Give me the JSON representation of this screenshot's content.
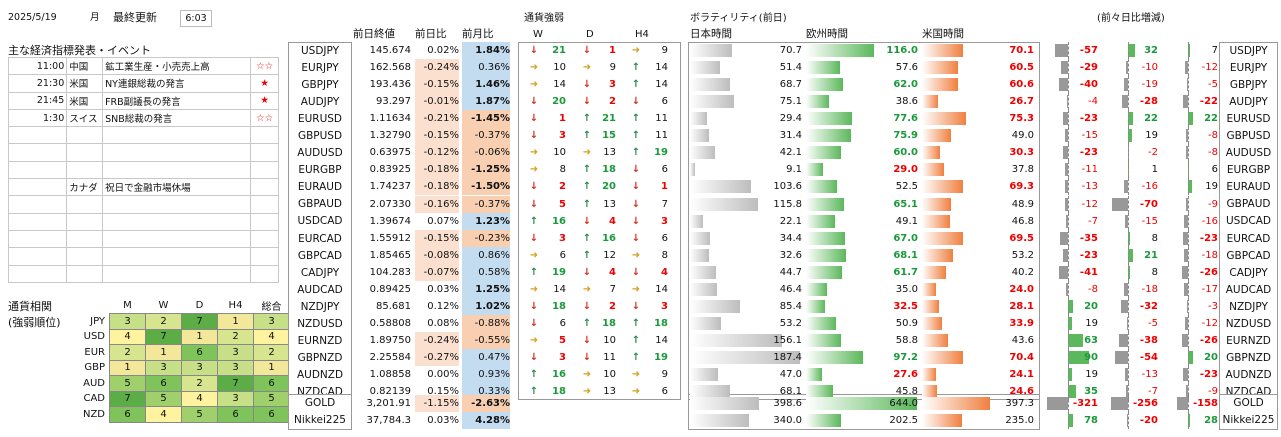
{
  "header": {
    "date": "2025/5/19",
    "weekday": "月",
    "updated_label": "最終更新",
    "time": "6:03"
  },
  "events": {
    "title": "主な経済指標発表・イベント",
    "rows": [
      {
        "time": "11:00",
        "country": "中国",
        "name": "鉱工業生産・小売売上高",
        "stars": "☆☆"
      },
      {
        "time": "21:30",
        "country": "米国",
        "name": "NY連銀総裁の発言",
        "stars": "★"
      },
      {
        "time": "21:45",
        "country": "米国",
        "name": "FRB副議長の発言",
        "stars": "★"
      },
      {
        "time": "1:30",
        "country": "スイス",
        "name": "SNB総裁の発言",
        "stars": "☆☆"
      },
      {
        "time": "",
        "country": "",
        "name": "",
        "stars": ""
      },
      {
        "time": "",
        "country": "",
        "name": "",
        "stars": ""
      },
      {
        "time": "",
        "country": "",
        "name": "",
        "stars": ""
      },
      {
        "time": "",
        "country": "カナダ",
        "name": "祝日で金融市場休場",
        "stars": ""
      },
      {
        "time": "",
        "country": "",
        "name": "",
        "stars": ""
      },
      {
        "time": "",
        "country": "",
        "name": "",
        "stars": ""
      },
      {
        "time": "",
        "country": "",
        "name": "",
        "stars": ""
      },
      {
        "time": "",
        "country": "",
        "name": "",
        "stars": ""
      },
      {
        "time": "",
        "country": "",
        "name": "",
        "stars": ""
      }
    ]
  },
  "correlation": {
    "title1": "通貨相関",
    "title2": "(強弱順位)",
    "cols": [
      "M",
      "W",
      "D",
      "H4",
      "総合"
    ],
    "rows": [
      {
        "ccy": "JPY",
        "v": [
          3,
          2,
          7,
          1,
          3
        ]
      },
      {
        "ccy": "USD",
        "v": [
          4,
          7,
          1,
          2,
          4
        ]
      },
      {
        "ccy": "EUR",
        "v": [
          2,
          1,
          6,
          3,
          2
        ]
      },
      {
        "ccy": "GBP",
        "v": [
          1,
          3,
          3,
          3,
          1
        ]
      },
      {
        "ccy": "AUD",
        "v": [
          5,
          6,
          2,
          7,
          6
        ]
      },
      {
        "ccy": "CAD",
        "v": [
          7,
          5,
          4,
          3,
          5
        ]
      },
      {
        "ccy": "NZD",
        "v": [
          6,
          4,
          5,
          6,
          6
        ]
      }
    ]
  },
  "quotes": {
    "headers": {
      "prev_close": "前日終値",
      "day_chg": "前日比",
      "month_chg": "前月比",
      "strength": "通貨強弱",
      "w": "W",
      "d": "D",
      "h4": "H4",
      "volatility": "ボラティリティ(前日)",
      "tokyo": "日本時間",
      "europe": "欧州時間",
      "ny": "米国時間",
      "diff": "(前々日比増減)"
    },
    "rows": [
      {
        "pair": "USDJPY",
        "close": "145.674",
        "day": "0.02%",
        "mon": "1.84%",
        "w": "↓",
        "wn": 21,
        "d": "↓",
        "dn": 1,
        "h4": "➜",
        "hn": 9,
        "jp": "70.7",
        "eu": "116.0",
        "us": "70.1",
        "djp": "-57",
        "deu": "32",
        "dus": "7"
      },
      {
        "pair": "EURJPY",
        "close": "162.568",
        "day": "-0.24%",
        "mon": "0.36%",
        "w": "➜",
        "wn": 10,
        "d": "➜",
        "dn": 9,
        "h4": "↑",
        "hn": 14,
        "jp": "51.4",
        "eu": "57.6",
        "us": "60.5",
        "djp": "-29",
        "deu": "-10",
        "dus": "-12"
      },
      {
        "pair": "GBPJPY",
        "close": "193.436",
        "day": "-0.15%",
        "mon": "1.46%",
        "w": "➜",
        "wn": 14,
        "d": "↓",
        "dn": 3,
        "h4": "↑",
        "hn": 14,
        "jp": "68.7",
        "eu": "62.0",
        "us": "60.6",
        "djp": "-40",
        "deu": "-19",
        "dus": "-5"
      },
      {
        "pair": "AUDJPY",
        "close": "93.297",
        "day": "-0.01%",
        "mon": "1.87%",
        "w": "↓",
        "wn": 20,
        "d": "↓",
        "dn": 2,
        "h4": "↓",
        "hn": 6,
        "jp": "75.1",
        "eu": "38.6",
        "us": "26.7",
        "djp": "-4",
        "deu": "-28",
        "dus": "-22"
      },
      {
        "pair": "EURUSD",
        "close": "1.11634",
        "day": "-0.21%",
        "mon": "-1.45%",
        "w": "↓",
        "wn": 1,
        "d": "↑",
        "dn": 21,
        "h4": "↑",
        "hn": 11,
        "jp": "29.4",
        "eu": "77.6",
        "us": "75.3",
        "djp": "-23",
        "deu": "22",
        "dus": "22"
      },
      {
        "pair": "GBPUSD",
        "close": "1.32790",
        "day": "-0.15%",
        "mon": "-0.37%",
        "w": "↓",
        "wn": 3,
        "d": "↑",
        "dn": 15,
        "h4": "↑",
        "hn": 11,
        "jp": "31.4",
        "eu": "75.9",
        "us": "49.0",
        "djp": "-15",
        "deu": "19",
        "dus": "-8"
      },
      {
        "pair": "AUDUSD",
        "close": "0.63975",
        "day": "-0.12%",
        "mon": "-0.06%",
        "w": "➜",
        "wn": 10,
        "d": "➜",
        "dn": 13,
        "h4": "↑",
        "hn": 19,
        "jp": "42.1",
        "eu": "60.0",
        "us": "30.3",
        "djp": "-23",
        "deu": "-2",
        "dus": "-8"
      },
      {
        "pair": "EURGBP",
        "close": "0.83925",
        "day": "-0.18%",
        "mon": "-1.25%",
        "w": "➜",
        "wn": 8,
        "d": "↑",
        "dn": 18,
        "h4": "↓",
        "hn": 6,
        "jp": "9.1",
        "eu": "29.0",
        "us": "37.8",
        "djp": "-11",
        "deu": "1",
        "dus": "6"
      },
      {
        "pair": "EURAUD",
        "close": "1.74237",
        "day": "-0.18%",
        "mon": "-1.50%",
        "w": "↓",
        "wn": 2,
        "d": "↑",
        "dn": 20,
        "h4": "↓",
        "hn": 1,
        "jp": "103.6",
        "eu": "52.5",
        "us": "69.3",
        "djp": "-13",
        "deu": "-16",
        "dus": "19"
      },
      {
        "pair": "GBPAUD",
        "close": "2.07330",
        "day": "-0.16%",
        "mon": "-0.37%",
        "w": "↓",
        "wn": 5,
        "d": "↑",
        "dn": 13,
        "h4": "↓",
        "hn": 7,
        "jp": "115.8",
        "eu": "65.1",
        "us": "48.9",
        "djp": "-12",
        "deu": "-70",
        "dus": "-9"
      },
      {
        "pair": "USDCAD",
        "close": "1.39674",
        "day": "0.07%",
        "mon": "1.23%",
        "w": "↑",
        "wn": 16,
        "d": "↓",
        "dn": 4,
        "h4": "↓",
        "hn": 3,
        "jp": "22.1",
        "eu": "49.1",
        "us": "46.8",
        "djp": "-7",
        "deu": "-15",
        "dus": "-16"
      },
      {
        "pair": "EURCAD",
        "close": "1.55912",
        "day": "-0.15%",
        "mon": "-0.23%",
        "w": "↓",
        "wn": 3,
        "d": "↑",
        "dn": 16,
        "h4": "↓",
        "hn": 6,
        "jp": "34.4",
        "eu": "67.0",
        "us": "69.5",
        "djp": "-35",
        "deu": "8",
        "dus": "-23"
      },
      {
        "pair": "GBPCAD",
        "close": "1.85465",
        "day": "-0.08%",
        "mon": "0.86%",
        "w": "➜",
        "wn": 6,
        "d": "↑",
        "dn": 12,
        "h4": "➜",
        "hn": 8,
        "jp": "32.6",
        "eu": "68.1",
        "us": "53.2",
        "djp": "-23",
        "deu": "21",
        "dus": "-18"
      },
      {
        "pair": "CADJPY",
        "close": "104.283",
        "day": "-0.07%",
        "mon": "0.58%",
        "w": "↑",
        "wn": 19,
        "d": "↓",
        "dn": 4,
        "h4": "↓",
        "hn": 4,
        "jp": "44.7",
        "eu": "61.7",
        "us": "40.2",
        "djp": "-41",
        "deu": "8",
        "dus": "-26"
      },
      {
        "pair": "AUDCAD",
        "close": "0.89425",
        "day": "0.03%",
        "mon": "1.25%",
        "w": "➜",
        "wn": 14,
        "d": "➜",
        "dn": 7,
        "h4": "➜",
        "hn": 14,
        "jp": "46.4",
        "eu": "35.0",
        "us": "24.0",
        "djp": "-8",
        "deu": "-18",
        "dus": "-17"
      },
      {
        "pair": "NZDJPY",
        "close": "85.681",
        "day": "0.12%",
        "mon": "1.02%",
        "w": "↓",
        "wn": 18,
        "d": "↓",
        "dn": 2,
        "h4": "↓",
        "hn": 3,
        "jp": "85.4",
        "eu": "32.5",
        "us": "28.1",
        "djp": "20",
        "deu": "-32",
        "dus": "-3"
      },
      {
        "pair": "NZDUSD",
        "close": "0.58808",
        "day": "0.08%",
        "mon": "-0.88%",
        "w": "↓",
        "wn": 6,
        "d": "↑",
        "dn": 18,
        "h4": "↑",
        "hn": 18,
        "jp": "53.2",
        "eu": "50.9",
        "us": "33.9",
        "djp": "19",
        "deu": "-5",
        "dus": "-12"
      },
      {
        "pair": "EURNZD",
        "close": "1.89750",
        "day": "-0.24%",
        "mon": "-0.55%",
        "w": "➜",
        "wn": 5,
        "d": "↓",
        "dn": 10,
        "h4": "↑",
        "hn": 14,
        "jp": "156.1",
        "eu": "58.8",
        "us": "43.6",
        "djp": "63",
        "deu": "-38",
        "dus": "-26"
      },
      {
        "pair": "GBPNZD",
        "close": "2.25584",
        "day": "-0.27%",
        "mon": "0.47%",
        "w": "↓",
        "wn": 3,
        "d": "↓",
        "dn": 11,
        "h4": "↑",
        "hn": 19,
        "jp": "187.4",
        "eu": "97.2",
        "us": "70.4",
        "djp": "90",
        "deu": "-54",
        "dus": "20"
      },
      {
        "pair": "AUDNZD",
        "close": "1.08858",
        "day": "0.00%",
        "mon": "0.93%",
        "w": "↑",
        "wn": 16,
        "d": "➜",
        "dn": 10,
        "h4": "➜",
        "hn": 9,
        "jp": "47.0",
        "eu": "27.6",
        "us": "24.1",
        "djp": "19",
        "deu": "-13",
        "dus": "-23"
      },
      {
        "pair": "NZDCAD",
        "close": "0.82139",
        "day": "0.15%",
        "mon": "0.33%",
        "w": "↑",
        "wn": 18,
        "d": "➜",
        "dn": 13,
        "h4": "➜",
        "hn": 6,
        "jp": "68.1",
        "eu": "45.8",
        "us": "24.6",
        "djp": "35",
        "deu": "-7",
        "dus": "-9"
      }
    ]
  },
  "others": [
    {
      "name": "GOLD",
      "close": "3,201.91",
      "day": "-1.15%",
      "mon": "-2.63%",
      "jp": "398.6",
      "eu": "644.0",
      "us": "397.3",
      "djp": "-321",
      "deu": "-256",
      "dus": "-158"
    },
    {
      "name": "Nikkei225",
      "close": "37,784.3",
      "day": "0.03%",
      "mon": "4.28%",
      "jp": "340.0",
      "eu": "202.5",
      "us": "235.0",
      "djp": "78",
      "deu": "-20",
      "dus": "28"
    }
  ]
}
